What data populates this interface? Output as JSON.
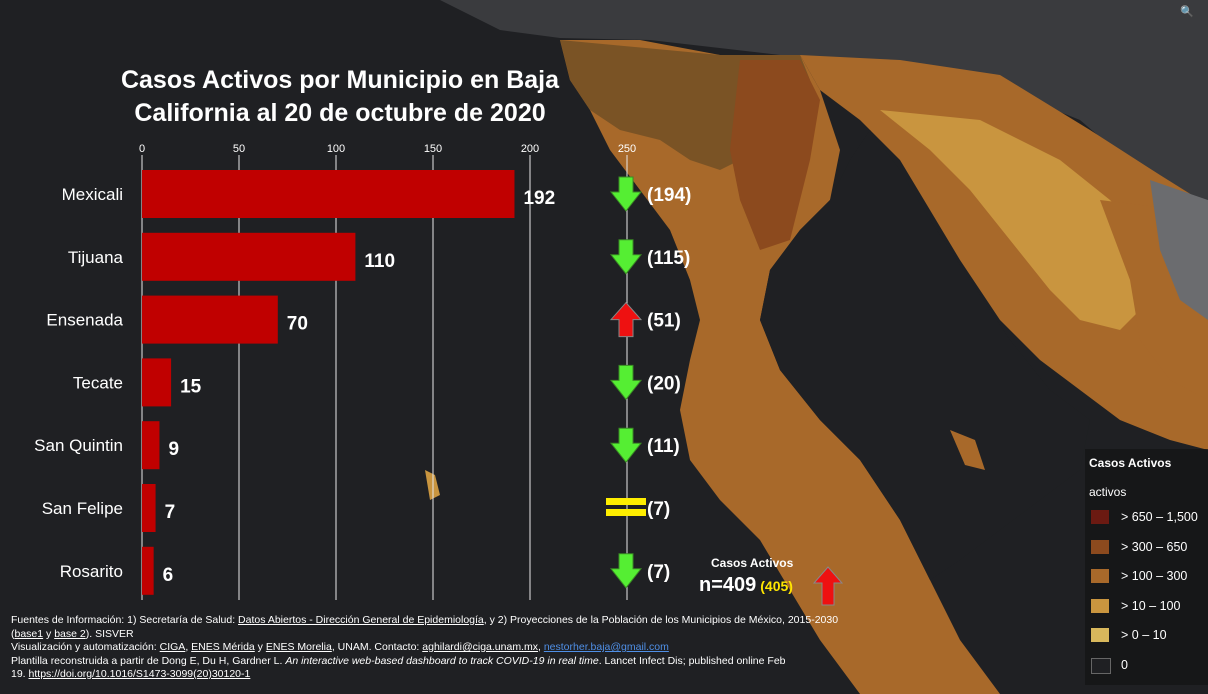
{
  "title": "Casos Activos por Municipio en Baja California al 20 de octubre de 2020",
  "chart_data": {
    "type": "bar",
    "orientation": "horizontal",
    "title": "Casos Activos por Municipio en Baja California al 20 de octubre de 2020",
    "categories": [
      "Mexicali",
      "Tijuana",
      "Ensenada",
      "Tecate",
      "San Quintin",
      "San Felipe",
      "Rosarito"
    ],
    "values": [
      192,
      110,
      70,
      15,
      9,
      7,
      6
    ],
    "previous_labels": [
      "(194)",
      "(115)",
      "(51)",
      "(20)",
      "(11)",
      "(7)",
      "(7)"
    ],
    "trend": [
      "down",
      "down",
      "up",
      "down",
      "down",
      "equal",
      "down"
    ],
    "xlim": [
      0,
      250
    ],
    "ticks": [
      0,
      50,
      100,
      150,
      200,
      250
    ],
    "bar_color": "#c00000",
    "grid": true
  },
  "total": {
    "label": "Casos Activos",
    "value": "n=409",
    "previous": "(405)",
    "trend": "up"
  },
  "legend": {
    "title": "Casos Activos",
    "subtitle": "activos",
    "items": [
      {
        "label": "> 650 – 1,500",
        "color": "#6b1a12"
      },
      {
        "label": "> 300 – 650",
        "color": "#8c4a1e"
      },
      {
        "label": "> 100 – 300",
        "color": "#a8692a"
      },
      {
        "label": "> 10 – 100",
        "color": "#c9953f"
      },
      {
        "label": "> 0 – 10",
        "color": "#d8b85c"
      },
      {
        "label": "0",
        "color": "#1f2023"
      }
    ]
  },
  "icons": {
    "search": "search-icon",
    "up": "red-up-arrow-icon",
    "down": "green-down-arrow-icon",
    "equal": "yellow-equal-icon"
  },
  "colors": {
    "up": "#ee1111",
    "down": "#55ee33",
    "equal": "#ffee00"
  },
  "sources": {
    "l1_a": "Fuentes de Información: 1) Secretaría de Salud: ",
    "l1_link": "Datos Abiertos - Dirección General de Epidemiología",
    "l1_b": ", y 2) Proyecciones de la Población de los Municipios de México, 2015-2030",
    "l2_a": "(",
    "l2_link1": "base1",
    "l2_b": " y ",
    "l2_link2": "base 2",
    "l2_c": "). SISVER",
    "l3_a": " Visualización y automatización: ",
    "l3_ciga": "CIGA",
    "l3_sep1": ", ",
    "l3_merida": "ENES Mérida",
    "l3_sep2": " y ",
    "l3_morelia": "ENES Morelia",
    "l3_b": ", UNAM. Contacto: ",
    "l3_mail1": "aghilardi@ciga.unam.mx",
    "l3_sep3": ", ",
    "l3_mail2": "nestorher.baja@gmail.com",
    "l4_a": " Plantilla reconstruida a partir de Dong E, Du H, Gardner L. ",
    "l4_italic": "An interactive web-based dashboard to track COVID-19 in real time",
    "l4_b": ". Lancet Infect Dis; published online Feb",
    "l5_a": "19. ",
    "l5_link": "https://doi.org/10.1016/S1473-3099(20)30120-1"
  }
}
